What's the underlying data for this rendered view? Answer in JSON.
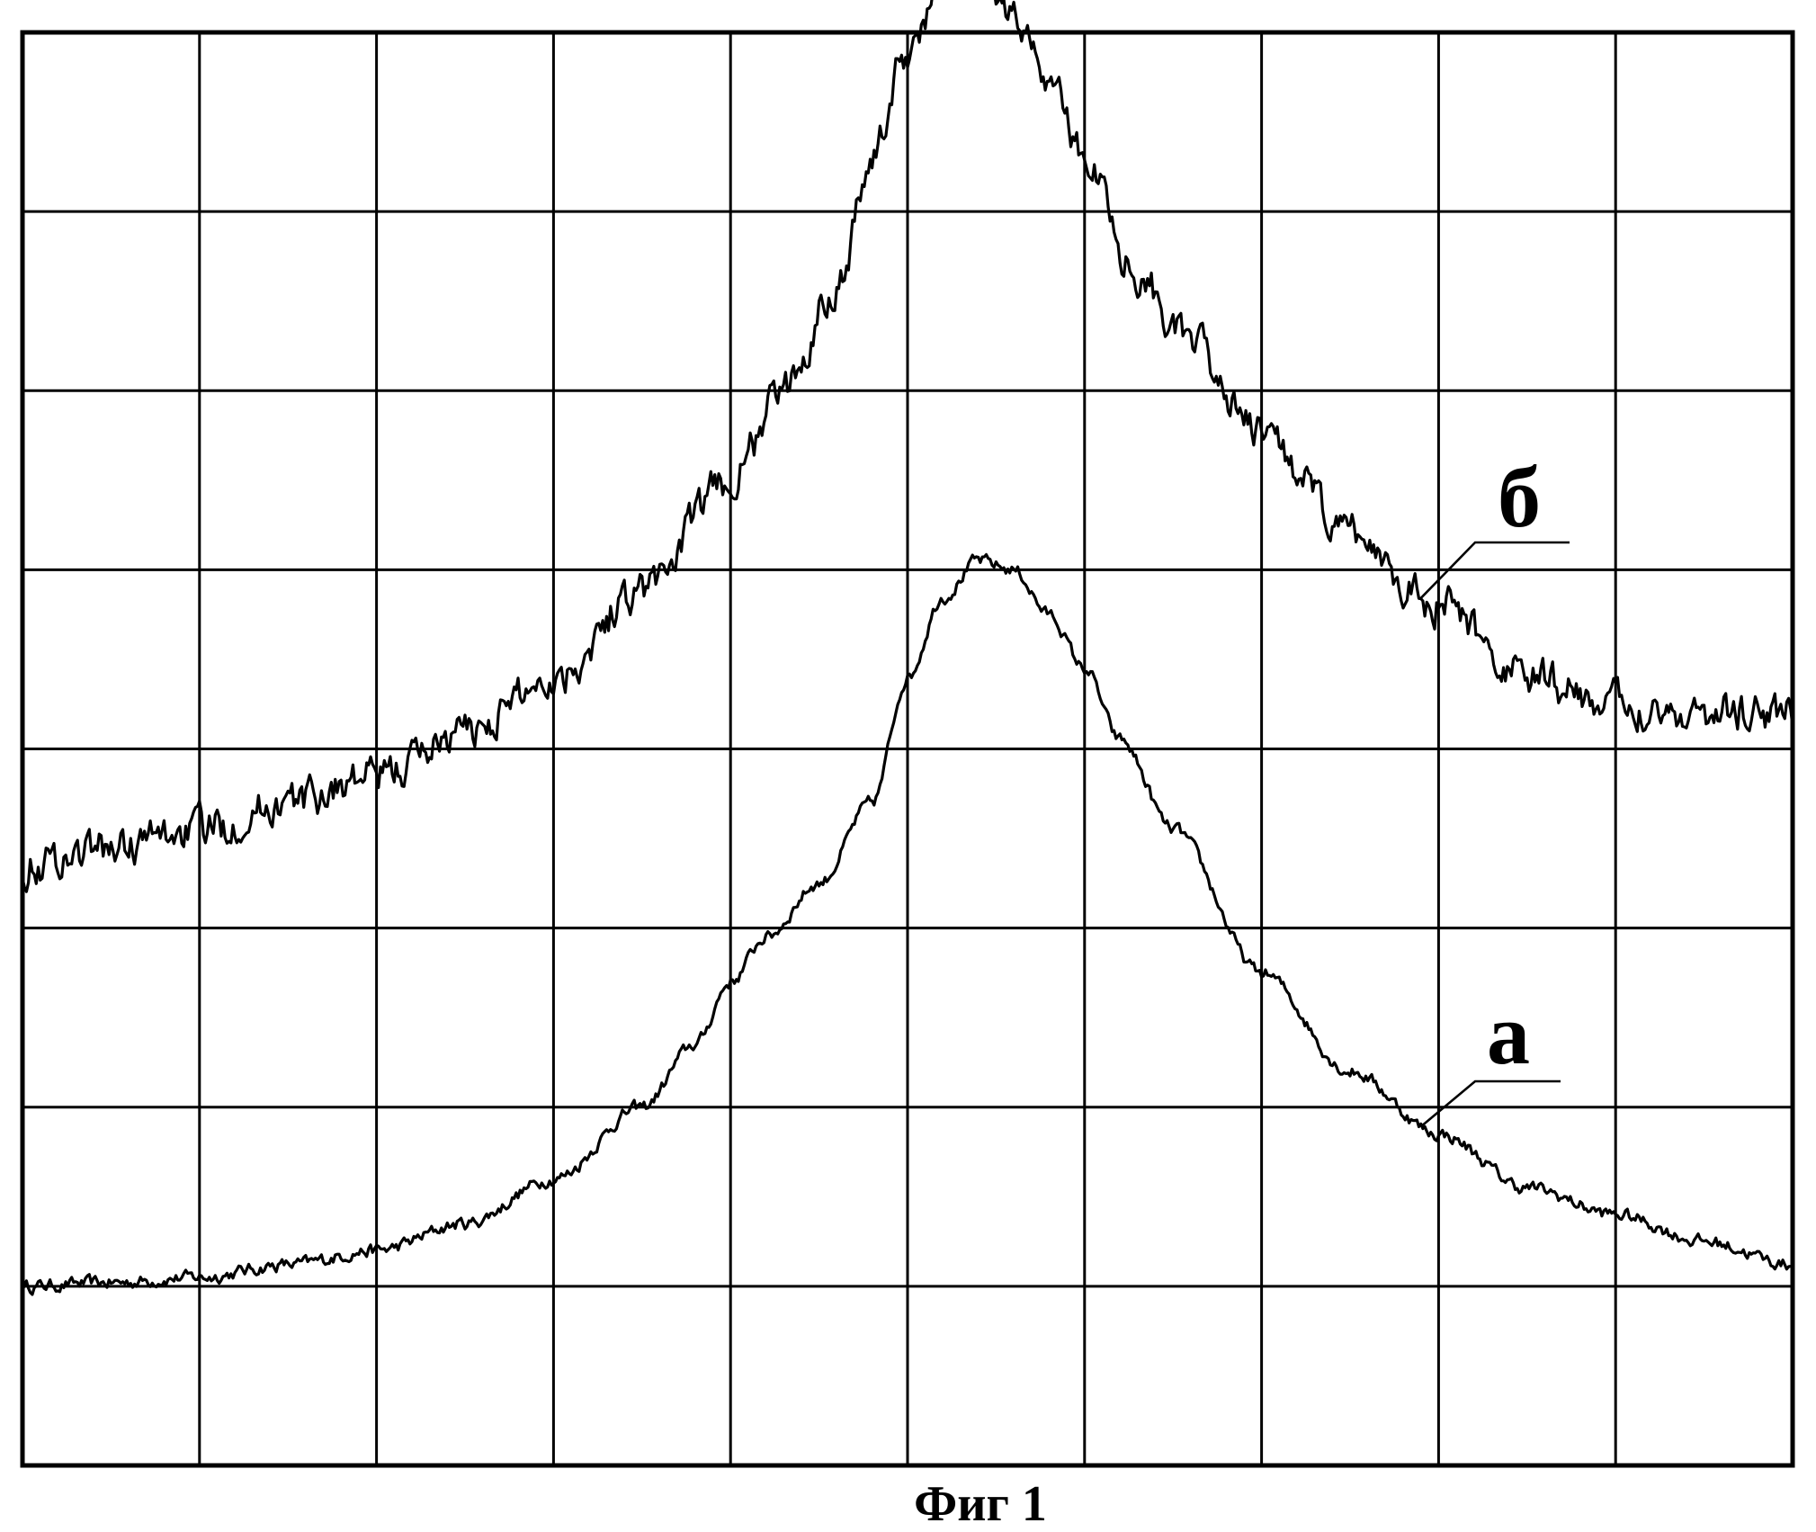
{
  "figure": {
    "caption": "Фиг 1"
  },
  "chart_data": {
    "type": "line",
    "title": "",
    "xlabel": "",
    "ylabel": "",
    "xlim": [
      0,
      10
    ],
    "ylim": [
      0,
      8
    ],
    "grid": true,
    "grid_divisions": {
      "x": 10,
      "y": 8
    },
    "annotations": [
      {
        "series": "а",
        "text": "а"
      },
      {
        "series": "б",
        "text": "б"
      }
    ],
    "series": [
      {
        "name": "а",
        "noise": 0.03,
        "x": [
          0,
          0.5,
          1.0,
          1.5,
          2.0,
          2.5,
          3.0,
          3.5,
          3.8,
          4.0,
          4.2,
          4.5,
          4.8,
          5.0,
          5.2,
          5.4,
          5.6,
          5.8,
          6.0,
          6.2,
          6.5,
          7.0,
          7.5,
          8.0,
          8.5,
          9.0,
          9.5,
          10.0
        ],
        "y": [
          1.0,
          1.02,
          1.05,
          1.12,
          1.2,
          1.35,
          1.6,
          2.0,
          2.35,
          2.7,
          2.95,
          3.25,
          3.7,
          4.4,
          4.85,
          5.05,
          5.0,
          4.75,
          4.45,
          4.05,
          3.55,
          2.75,
          2.2,
          1.85,
          1.55,
          1.4,
          1.25,
          1.12
        ]
      },
      {
        "name": "б",
        "noise": 0.09,
        "x": [
          0,
          0.5,
          1.0,
          1.5,
          2.0,
          2.5,
          3.0,
          3.5,
          4.0,
          4.3,
          4.6,
          4.8,
          5.0,
          5.2,
          5.4,
          5.6,
          5.8,
          6.0,
          6.3,
          6.6,
          7.0,
          7.5,
          8.0,
          8.5,
          9.0,
          9.5,
          10.0
        ],
        "y": [
          3.35,
          3.45,
          3.55,
          3.7,
          3.85,
          4.1,
          4.4,
          4.9,
          5.5,
          6.0,
          6.6,
          7.3,
          7.9,
          8.25,
          8.3,
          8.1,
          7.75,
          7.3,
          6.65,
          6.25,
          5.75,
          5.2,
          4.8,
          4.4,
          4.25,
          4.2,
          4.2
        ]
      }
    ]
  }
}
